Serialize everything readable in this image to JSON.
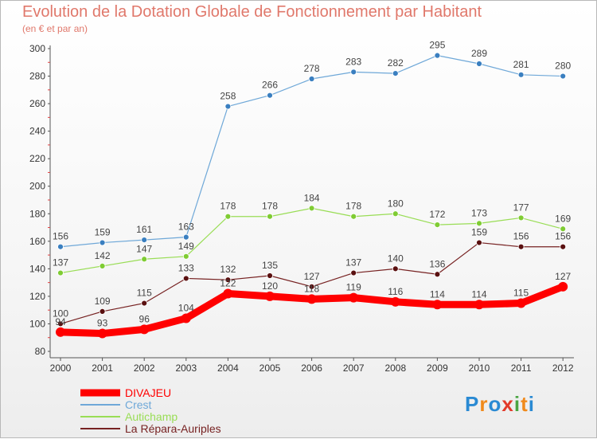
{
  "header": {
    "title": "Evolution de la Dotation Globale de Fonctionnement par Habitant",
    "subtitle": "(en € et par an)"
  },
  "logo": {
    "text": "Proxiti",
    "letters": [
      {
        "ch": "P",
        "color": "#2a8ad3"
      },
      {
        "ch": "r",
        "color": "#f08a1c"
      },
      {
        "ch": "o",
        "color": "#2a8ad3"
      },
      {
        "ch": "x",
        "color": "#e23a2a"
      },
      {
        "ch": "i",
        "color": "#4aa542"
      },
      {
        "ch": "t",
        "color": "#f08a1c"
      },
      {
        "ch": "i",
        "color": "#2a8ad3"
      }
    ]
  },
  "chart_data": {
    "type": "line",
    "x": [
      "2000",
      "2001",
      "2002",
      "2003",
      "2004",
      "2005",
      "2006",
      "2007",
      "2008",
      "2009",
      "2010",
      "2011",
      "2012"
    ],
    "ylim": [
      80,
      300
    ],
    "yticks": [
      80,
      100,
      120,
      140,
      160,
      180,
      200,
      220,
      240,
      260,
      280,
      300
    ],
    "grid": false,
    "legend_position": "bottom-left",
    "series": [
      {
        "name": "DIVAJEU",
        "color": "#ff0000",
        "values": [
          94,
          93,
          96,
          104,
          122,
          120,
          118,
          119,
          116,
          114,
          114,
          115,
          127
        ]
      },
      {
        "name": "Crest",
        "color": "#6fa8d8",
        "values": [
          156,
          159,
          161,
          163,
          258,
          266,
          278,
          283,
          282,
          295,
          289,
          281,
          280
        ]
      },
      {
        "name": "Autichamp",
        "color": "#99dd55",
        "values": [
          137,
          142,
          147,
          149,
          178,
          178,
          184,
          178,
          180,
          172,
          173,
          177,
          169
        ]
      },
      {
        "name": "La Répara-Auriples",
        "color": "#772222",
        "values": [
          100,
          109,
          115,
          133,
          132,
          135,
          127,
          137,
          140,
          136,
          159,
          156,
          156
        ]
      }
    ]
  }
}
